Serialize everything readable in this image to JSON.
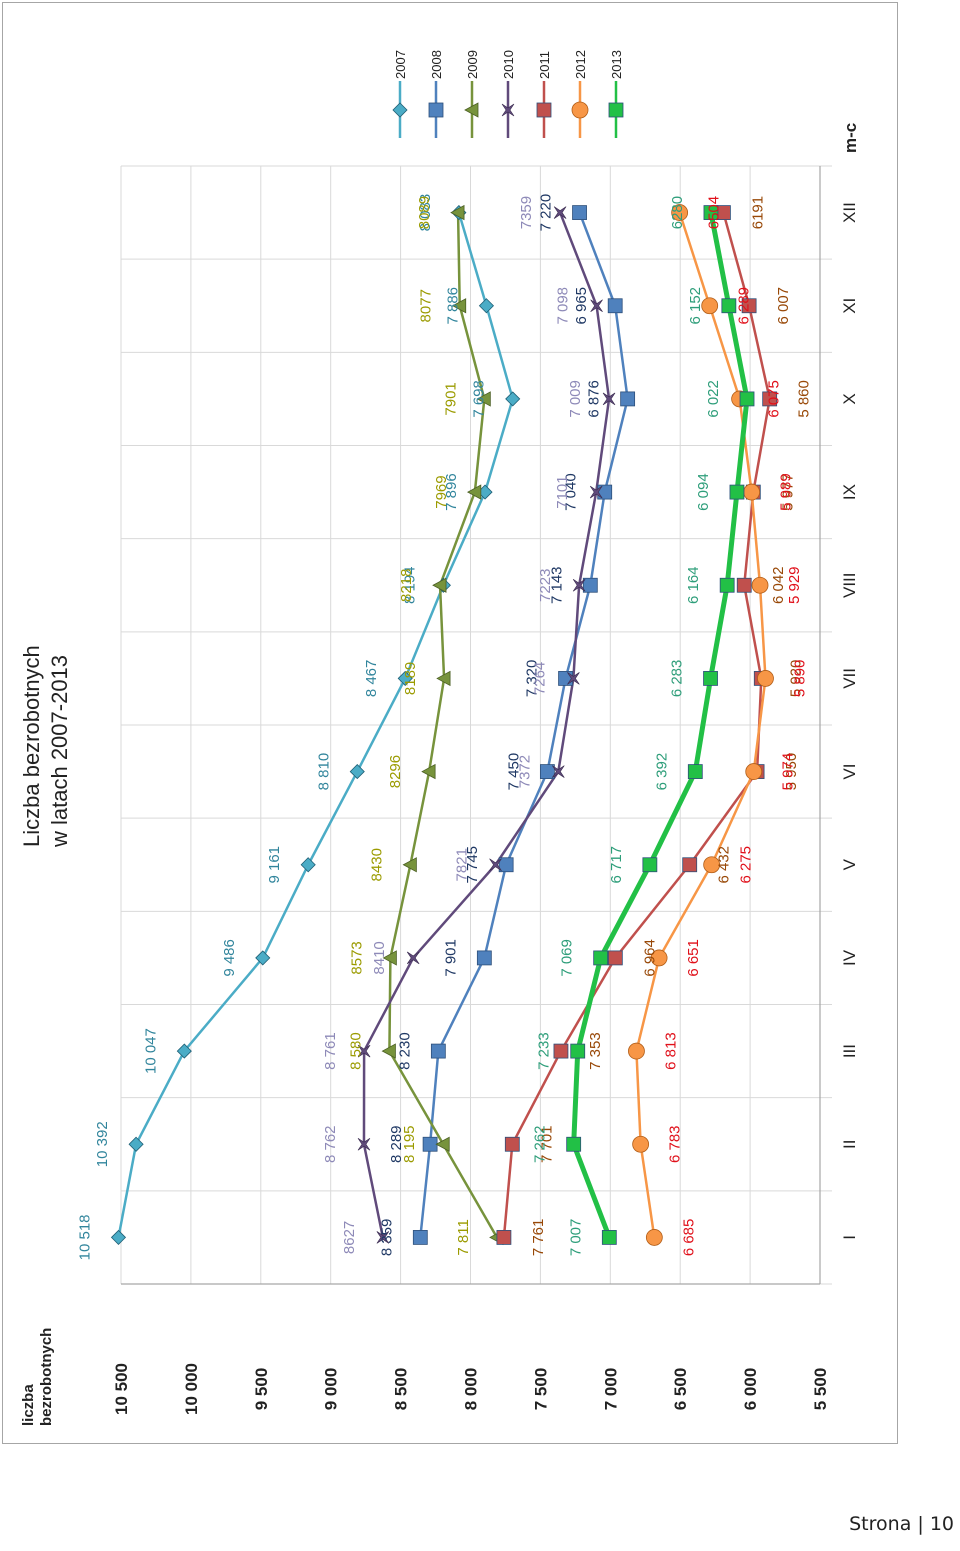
{
  "chart_data": {
    "type": "line",
    "title_line1": "Liczba bezrobotnych",
    "title_line2": "w latach 2007-2013",
    "ylabel_line1": "liczba",
    "ylabel_line2": "bezrobotnych",
    "xlabel": "m-c",
    "ylim": [
      5500,
      10500
    ],
    "yticks": [
      {
        "v": 10500,
        "label": "10 500"
      },
      {
        "v": 10000,
        "label": "10 000"
      },
      {
        "v": 9500,
        "label": "9 500"
      },
      {
        "v": 9000,
        "label": "9 000"
      },
      {
        "v": 8500,
        "label": "8 500"
      },
      {
        "v": 8000,
        "label": "8 000"
      },
      {
        "v": 7500,
        "label": "7 500"
      },
      {
        "v": 7000,
        "label": "7 000"
      },
      {
        "v": 6500,
        "label": "6 500"
      },
      {
        "v": 6000,
        "label": "6 000"
      },
      {
        "v": 5500,
        "label": "5 500"
      }
    ],
    "categories": [
      "I",
      "II",
      "III",
      "IV",
      "V",
      "VI",
      "VII",
      "VIII",
      "IX",
      "X",
      "XI",
      "XII"
    ],
    "grid": true,
    "legend_position": "top-right",
    "series": [
      {
        "name": "2007",
        "color": "#4bacc6",
        "label_color": "#31859c",
        "marker": "diamond",
        "values": [
          10518,
          10392,
          10047,
          9486,
          9161,
          8810,
          8467,
          8194,
          7896,
          7698,
          7886,
          8083
        ],
        "labels": [
          "10 518",
          "10 392",
          "10 047",
          "9 486",
          "9 161",
          "8 810",
          "8 467",
          "8 194",
          "7 896",
          "7 698",
          "7 886",
          "8 083"
        ]
      },
      {
        "name": "2008",
        "color": "#4f81bd",
        "label_color": "#1f3864",
        "marker": "square",
        "values": [
          8359,
          8289,
          8230,
          7901,
          7745,
          7450,
          7320,
          7143,
          7040,
          6876,
          6965,
          7220
        ],
        "labels": [
          "8 359",
          "8 289",
          "8 230",
          "7 901",
          "7 745",
          "7 450",
          "7 320",
          "7 143",
          "7 040",
          "6 876",
          "6 965",
          "7 220"
        ]
      },
      {
        "name": "2009",
        "color": "#77933c",
        "label_color": "#9b9b00",
        "marker": "triangle",
        "values": [
          7811,
          8195,
          8580,
          8573,
          8430,
          8296,
          8189,
          8218,
          7969,
          7901,
          8077,
          8089
        ],
        "labels": [
          "7 811",
          "8 195",
          "8 580",
          "8573",
          "8430",
          "8296",
          "8189",
          "8218",
          "7969",
          "7901",
          "8077",
          "8089"
        ]
      },
      {
        "name": "2010",
        "color": "#604a7b",
        "label_color": "#8e8ab8",
        "marker": "star",
        "values": [
          8627,
          8762,
          8761,
          8410,
          7821,
          7372,
          7264,
          7223,
          7101,
          7009,
          7098,
          7359
        ],
        "labels": [
          "8627",
          "8 762",
          "8 761",
          "8410",
          "7821",
          "7372",
          "7264",
          "7223",
          "7101",
          "7 009",
          "7 098",
          "7359"
        ]
      },
      {
        "name": "2011",
        "color": "#c0504d",
        "label_color": "#984807",
        "marker": "square",
        "values": [
          7761,
          7701,
          7353,
          6964,
          6432,
          5950,
          5920,
          6042,
          5977,
          5860,
          6007,
          6191
        ],
        "labels": [
          "7 761",
          "7 701",
          "7 353",
          "6 964",
          "6 432",
          "5 950",
          "5 920",
          "6 042",
          "5 977",
          "5 860",
          "6 007",
          "6191"
        ]
      },
      {
        "name": "2012",
        "color": "#f79646",
        "label_color": "#e0101a",
        "marker": "circle",
        "values": [
          6685,
          6783,
          6813,
          6651,
          6275,
          5974,
          5890,
          5929,
          5989,
          6075,
          6289,
          6504
        ],
        "labels": [
          "6 685",
          "6 783",
          "6 813",
          "6 651",
          "6 275",
          "5 974",
          "5 890",
          "5 929",
          "5 989",
          "6 075",
          "6 289",
          "6504"
        ]
      },
      {
        "name": "2013",
        "color": "#22c046",
        "label_color": "#2e9e7a",
        "marker": "square",
        "values": [
          7007,
          7262,
          7233,
          7069,
          6717,
          6392,
          6283,
          6164,
          6094,
          6022,
          6152,
          6280
        ],
        "labels": [
          "7 007",
          "7 262",
          "7 233",
          "7 069",
          "6 717",
          "6 392",
          "6 283",
          "6 164",
          "6 094",
          "6 022",
          "6 152",
          "6280"
        ]
      }
    ]
  },
  "footer": {
    "page_label": "Strona | 10"
  }
}
